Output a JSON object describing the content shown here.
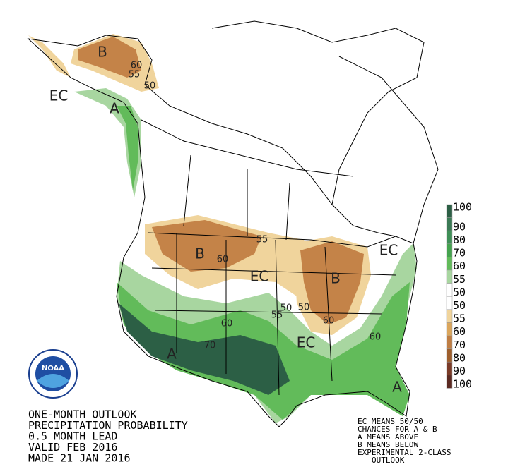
{
  "outlook": {
    "lines": [
      "ONE-MONTH OUTLOOK",
      "PRECIPITATION PROBABILITY",
      "0.5 MONTH LEAD",
      "VALID FEB 2016",
      "MADE 21 JAN 2016"
    ]
  },
  "legend": {
    "labels": [
      100,
      90,
      80,
      70,
      60,
      55,
      50,
      50,
      55,
      60,
      70,
      80,
      90,
      100
    ],
    "colors": [
      "#2c5f45",
      "#3b7a55",
      "#3f8f57",
      "#45a34f",
      "#62bb5a",
      "#a8d6a0",
      "#ffffff",
      "#ffffff",
      "#f0d49c",
      "#dba65c",
      "#bf7e44",
      "#9e5f2d",
      "#7a3b28",
      "#5b2a22"
    ]
  },
  "map_labels": [
    "B",
    "60",
    "55",
    "50",
    "EC",
    "A",
    "B",
    "60",
    "55",
    "EC",
    "B",
    "50",
    "55",
    "50",
    "EC",
    "60",
    "70",
    "A",
    "EC",
    "60",
    "A",
    "60"
  ],
  "note": [
    "EC MEANS 50/50",
    "CHANCES FOR A & B",
    "A MEANS ABOVE",
    "B MEANS BELOW",
    "EXPERIMENTAL 2-CLASS",
    "OUTLOOK"
  ],
  "logo": "NOAA"
}
